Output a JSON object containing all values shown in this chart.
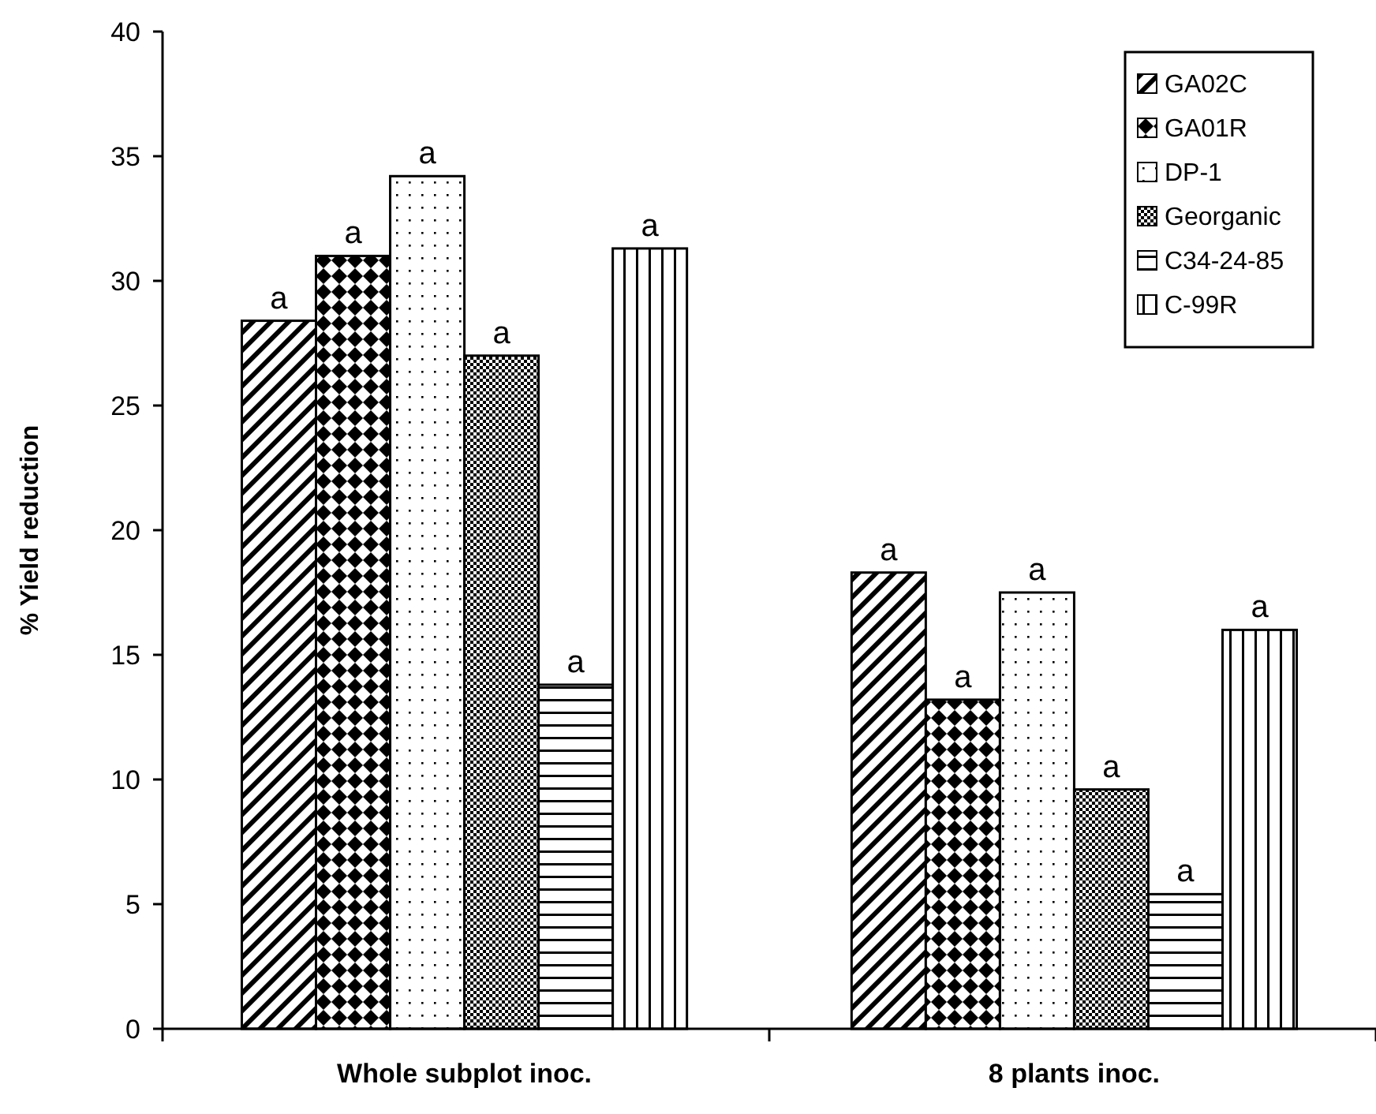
{
  "chart_data": {
    "type": "bar",
    "ylabel": "% Yield reduction",
    "categories": [
      "Whole subplot inoc.",
      "8 plants inoc."
    ],
    "ylim": [
      0,
      40
    ],
    "yticks": [
      0,
      5,
      10,
      15,
      20,
      25,
      30,
      35,
      40
    ],
    "legend": "top right",
    "grid": false,
    "series": [
      {
        "name": "GA02C",
        "color": "#000000",
        "values": [
          28.4,
          18.3
        ],
        "value_labels": [
          "a",
          "a"
        ]
      },
      {
        "name": "GA01R",
        "color": "#000000",
        "values": [
          31.0,
          13.2
        ],
        "value_labels": [
          "a",
          "a"
        ]
      },
      {
        "name": "DP-1",
        "color": "#000000",
        "values": [
          34.2,
          17.5
        ],
        "value_labels": [
          "a",
          "a"
        ]
      },
      {
        "name": "Georganic",
        "color": "#000000",
        "values": [
          27.0,
          9.6
        ],
        "value_labels": [
          "a",
          "a"
        ]
      },
      {
        "name": "C34-24-85",
        "color": "#000000",
        "values": [
          13.8,
          5.4
        ],
        "value_labels": [
          "a",
          "a"
        ]
      },
      {
        "name": "C-99R",
        "color": "#000000",
        "values": [
          31.3,
          16.0
        ],
        "value_labels": [
          "a",
          "a"
        ]
      }
    ]
  }
}
